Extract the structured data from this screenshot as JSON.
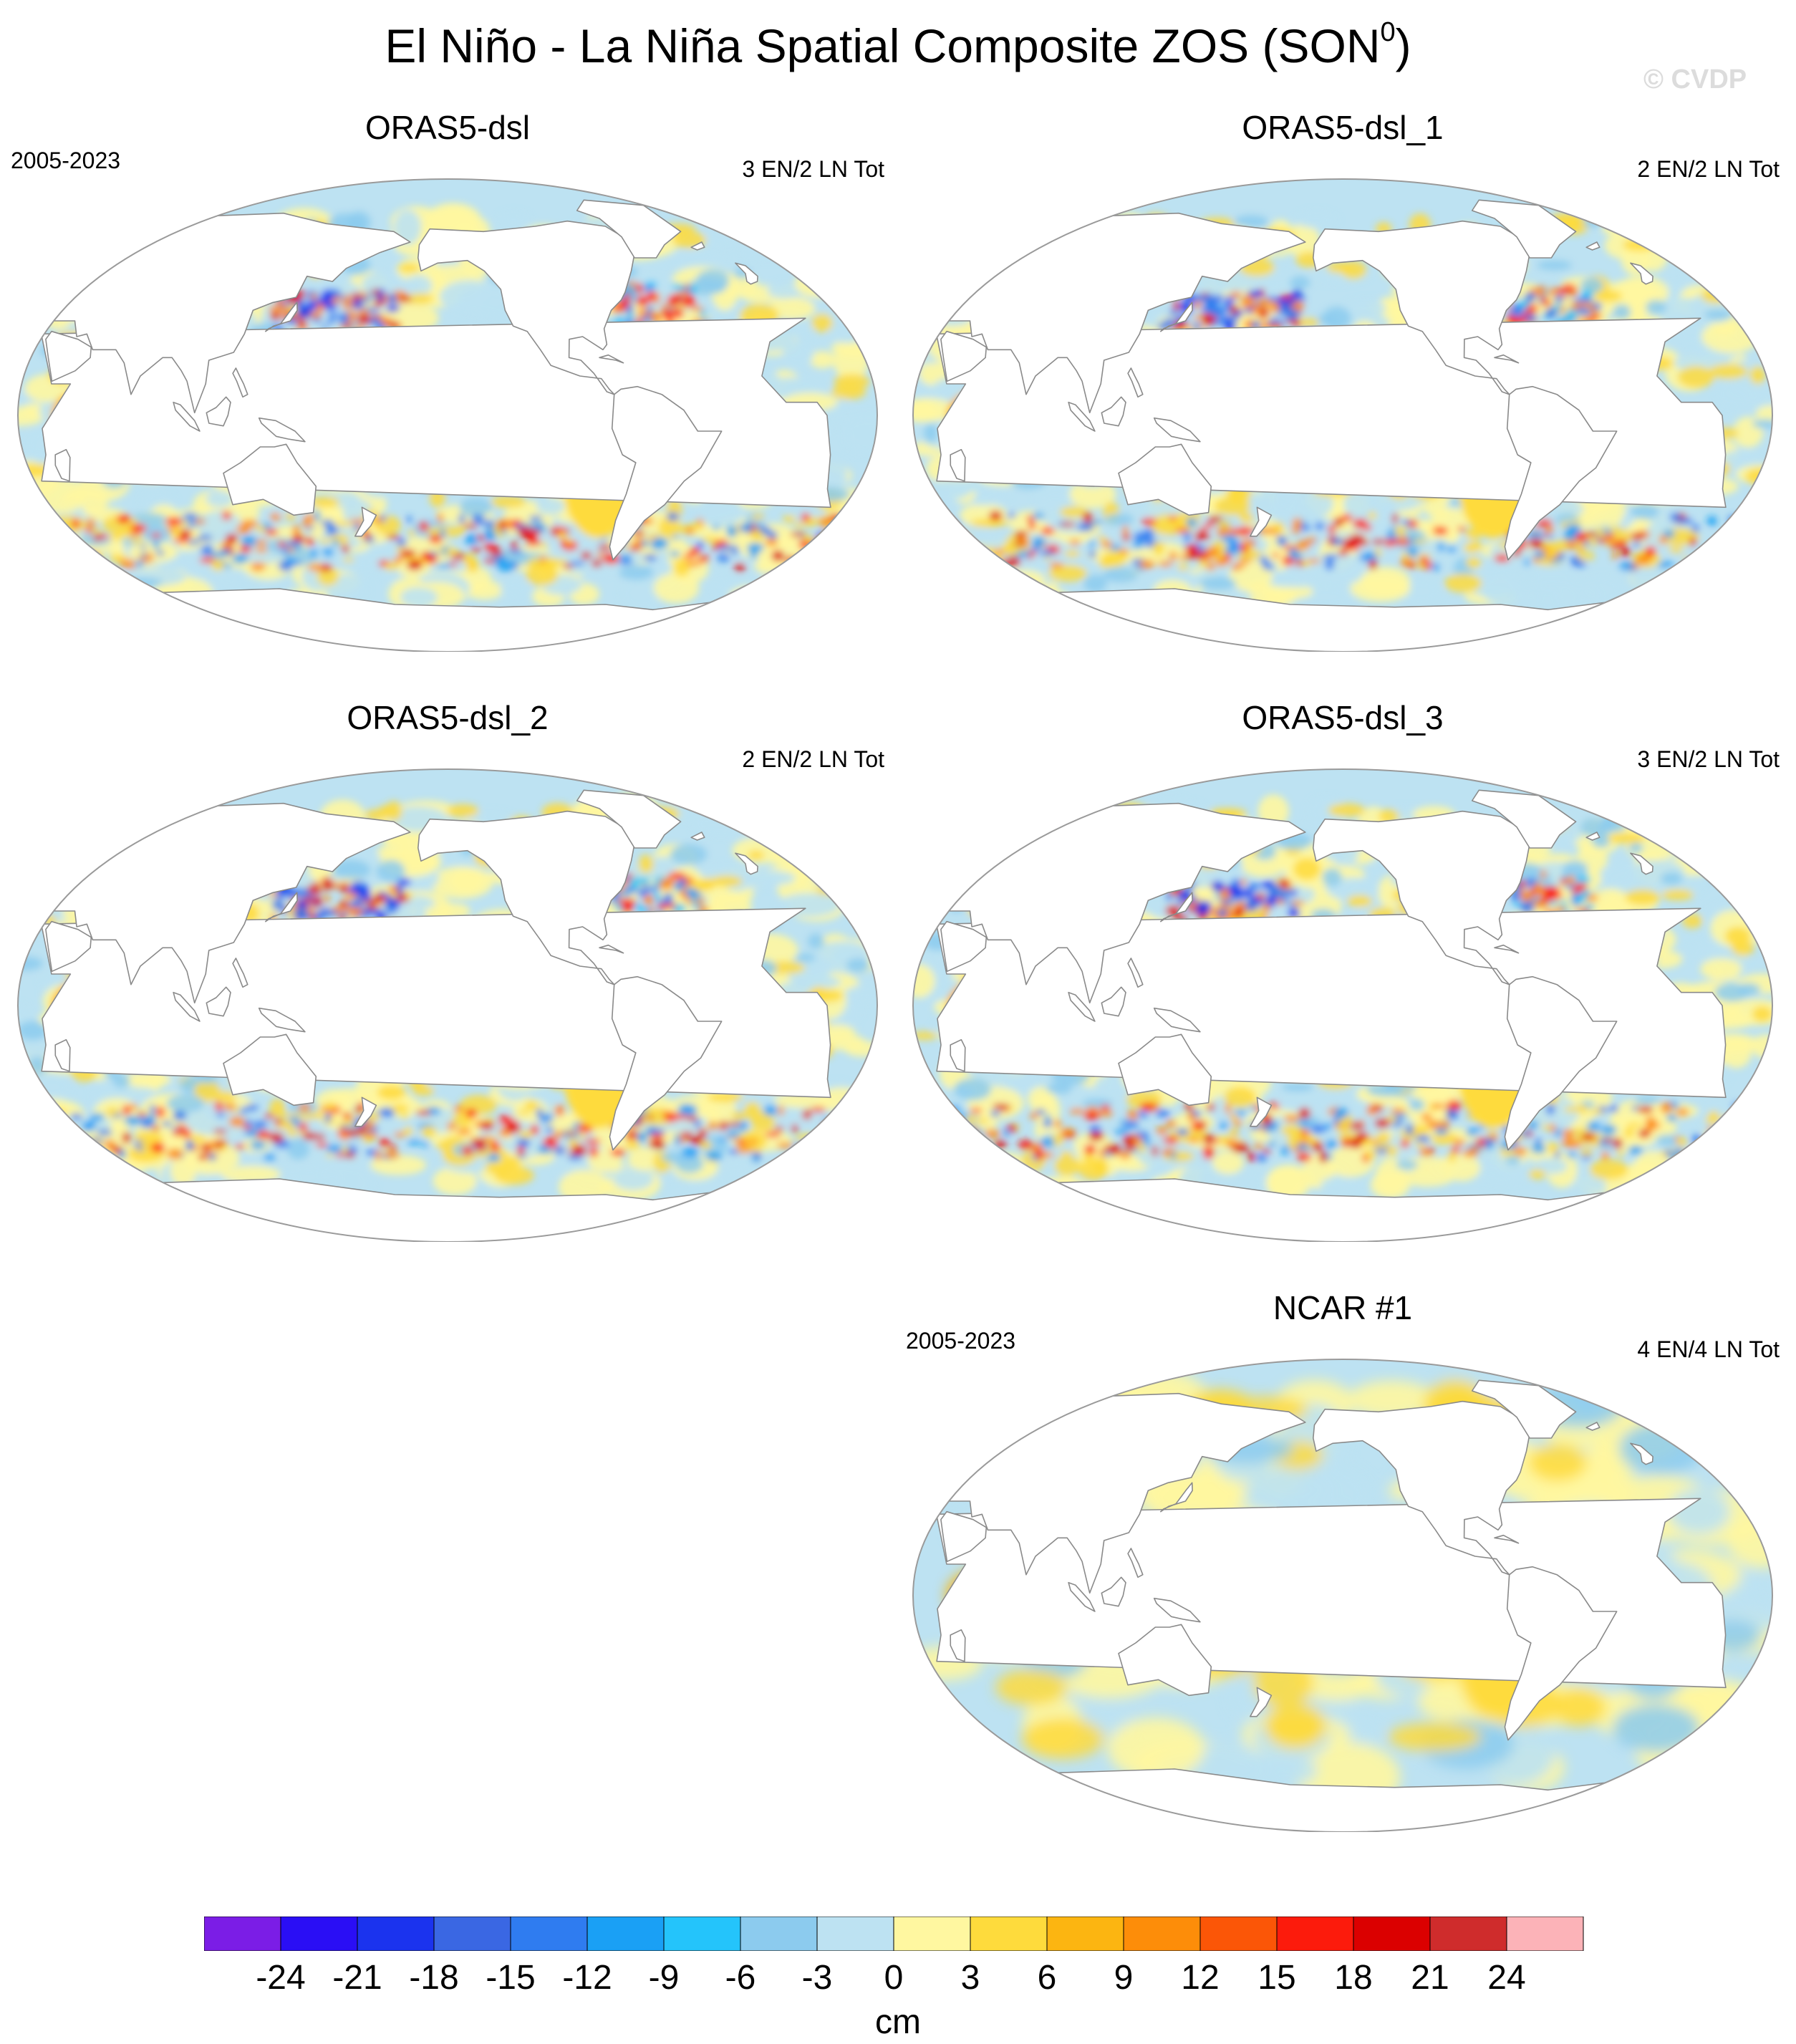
{
  "figure": {
    "title_main": "El Niño - La Niña Spatial Composite ZOS (SON",
    "title_sup": "0",
    "title_end": ")",
    "copyright": "© CVDP"
  },
  "panels": [
    {
      "title": "ORAS5-dsl",
      "years": "2005-2023",
      "count": "3 EN/2 LN Tot"
    },
    {
      "title": "ORAS5-dsl_1",
      "years": "",
      "count": "2 EN/2 LN Tot"
    },
    {
      "title": "ORAS5-dsl_2",
      "years": "",
      "count": "2 EN/2 LN Tot"
    },
    {
      "title": "ORAS5-dsl_3",
      "years": "",
      "count": "3 EN/2 LN Tot"
    },
    {
      "title": "NCAR #1",
      "years": "2005-2023",
      "count": "4 EN/4 LN Tot"
    }
  ],
  "colorbar": {
    "units": "cm",
    "labels": [
      "-24",
      "-21",
      "-18",
      "-15",
      "-12",
      "-9",
      "-6",
      "-3",
      "0",
      "3",
      "6",
      "9",
      "12",
      "15",
      "18",
      "21",
      "24"
    ],
    "colors": [
      "#7b1de6",
      "#2a0ef5",
      "#1b33ee",
      "#3a67e3",
      "#2f7cf0",
      "#1aa0f5",
      "#24c4fb",
      "#8ccbee",
      "#bde2f2",
      "#fff7a0",
      "#fedb3c",
      "#fcb511",
      "#fd8d09",
      "#fb5607",
      "#fc1b0c",
      "#db0000",
      "#cf2c2c",
      "#fcb3b8"
    ]
  },
  "legend_palette": {
    "land": "#ffffff",
    "coast": "#8a8a8a"
  }
}
